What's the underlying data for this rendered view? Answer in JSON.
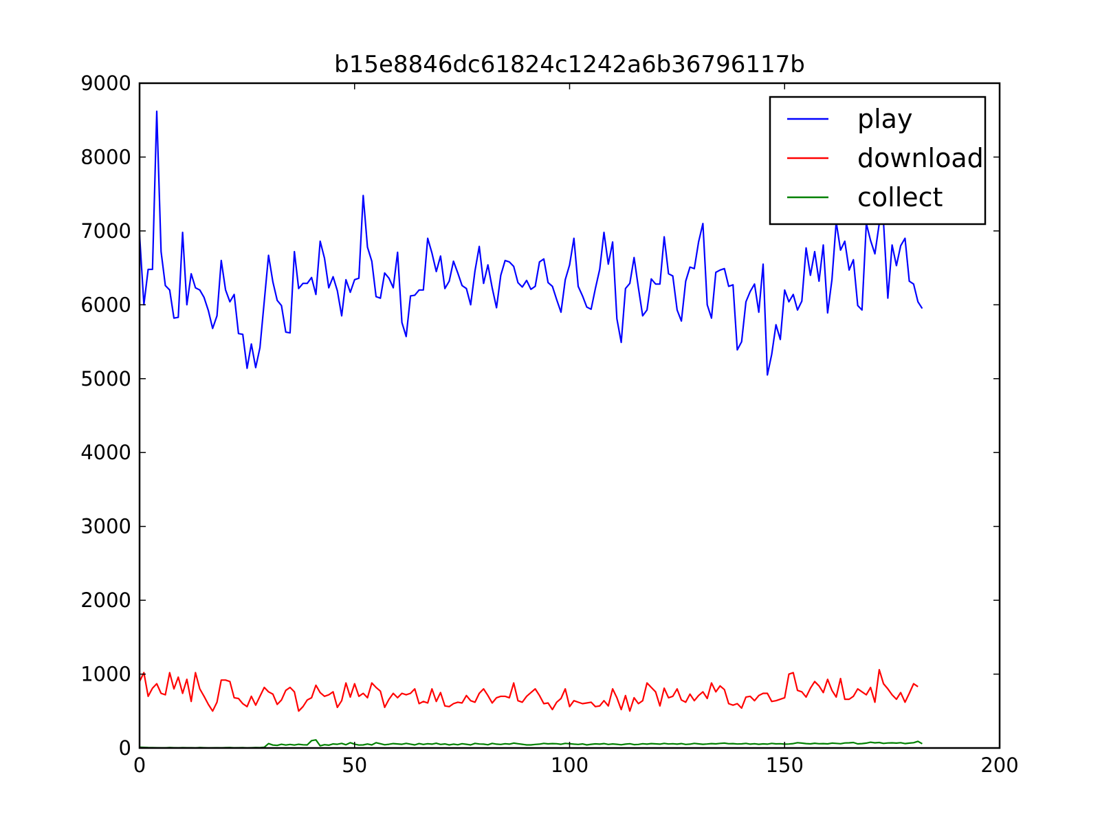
{
  "chart_data": {
    "type": "line",
    "title": "b15e8846dc61824c1242a6b36796117b",
    "xlabel": "",
    "ylabel": "",
    "xlim": [
      0,
      200
    ],
    "ylim": [
      0,
      9000
    ],
    "xticks": [
      0,
      50,
      100,
      150,
      200
    ],
    "yticks": [
      0,
      1000,
      2000,
      3000,
      4000,
      5000,
      6000,
      7000,
      8000,
      9000
    ],
    "grid": false,
    "legend_position": "top-right",
    "series": [
      {
        "name": "play",
        "color": "#0000ff",
        "values": [
          6950,
          6000,
          6480,
          6480,
          8620,
          6720,
          6260,
          6200,
          5820,
          5830,
          6980,
          6000,
          6420,
          6230,
          6200,
          6100,
          5920,
          5680,
          5850,
          6600,
          6200,
          6040,
          6140,
          5610,
          5600,
          5140,
          5470,
          5150,
          5420,
          6050,
          6670,
          6310,
          6060,
          5990,
          5630,
          5620,
          6720,
          6220,
          6290,
          6290,
          6370,
          6140,
          6860,
          6630,
          6230,
          6380,
          6190,
          5850,
          6340,
          6170,
          6340,
          6360,
          7480,
          6780,
          6590,
          6110,
          6090,
          6430,
          6360,
          6230,
          6710,
          5760,
          5570,
          6120,
          6130,
          6200,
          6200,
          6900,
          6700,
          6450,
          6660,
          6220,
          6320,
          6590,
          6430,
          6260,
          6220,
          6000,
          6460,
          6790,
          6290,
          6540,
          6230,
          5960,
          6400,
          6600,
          6580,
          6520,
          6300,
          6240,
          6330,
          6210,
          6250,
          6580,
          6620,
          6300,
          6250,
          6070,
          5900,
          6340,
          6540,
          6900,
          6250,
          6120,
          5970,
          5940,
          6220,
          6480,
          6980,
          6550,
          6850,
          5810,
          5490,
          6220,
          6290,
          6640,
          6230,
          5850,
          5930,
          6350,
          6280,
          6280,
          6920,
          6420,
          6390,
          5930,
          5780,
          6320,
          6510,
          6490,
          6850,
          7100,
          6000,
          5820,
          6440,
          6470,
          6490,
          6250,
          6270,
          5390,
          5500,
          6040,
          6180,
          6280,
          5900,
          6550,
          5050,
          5330,
          5730,
          5530,
          6200,
          6040,
          6140,
          5930,
          6050,
          6770,
          6400,
          6720,
          6320,
          6810,
          5890,
          6340,
          7120,
          6740,
          6860,
          6470,
          6610,
          5990,
          5930,
          7100,
          6870,
          6690,
          7100,
          7120,
          6090,
          6810,
          6530,
          6800,
          6900,
          6320,
          6280,
          6040,
          5950
        ]
      },
      {
        "name": "download",
        "color": "#ff0000",
        "values": [
          900,
          1020,
          700,
          810,
          870,
          740,
          720,
          1020,
          800,
          960,
          740,
          930,
          630,
          1020,
          800,
          700,
          590,
          500,
          620,
          920,
          920,
          900,
          680,
          670,
          600,
          560,
          700,
          580,
          700,
          820,
          760,
          730,
          590,
          650,
          780,
          820,
          760,
          500,
          560,
          650,
          680,
          850,
          750,
          700,
          720,
          760,
          550,
          640,
          880,
          690,
          870,
          700,
          740,
          680,
          880,
          820,
          770,
          550,
          660,
          740,
          680,
          740,
          720,
          740,
          800,
          600,
          630,
          610,
          800,
          630,
          750,
          570,
          560,
          600,
          620,
          610,
          710,
          640,
          620,
          740,
          800,
          710,
          610,
          680,
          700,
          700,
          680,
          880,
          640,
          620,
          700,
          750,
          800,
          710,
          600,
          610,
          520,
          620,
          670,
          800,
          560,
          640,
          620,
          600,
          610,
          620,
          560,
          570,
          640,
          570,
          800,
          680,
          520,
          710,
          500,
          680,
          600,
          640,
          880,
          820,
          760,
          570,
          810,
          680,
          700,
          800,
          650,
          620,
          730,
          640,
          710,
          760,
          670,
          880,
          760,
          840,
          790,
          600,
          580,
          600,
          540,
          690,
          700,
          640,
          710,
          740,
          740,
          630,
          640,
          660,
          680,
          1000,
          1020,
          780,
          760,
          690,
          810,
          900,
          840,
          750,
          930,
          780,
          690,
          940,
          660,
          660,
          700,
          800,
          760,
          720,
          820,
          620,
          1060,
          870,
          800,
          720,
          660,
          750,
          620,
          740,
          870,
          830
        ]
      },
      {
        "name": "collect",
        "color": "#008000",
        "values": [
          10,
          8,
          6,
          5,
          4,
          3,
          3,
          6,
          4,
          3,
          5,
          4,
          4,
          2,
          6,
          4,
          2,
          3,
          4,
          3,
          5,
          6,
          3,
          4,
          5,
          2,
          4,
          6,
          5,
          10,
          60,
          40,
          35,
          50,
          40,
          48,
          40,
          50,
          44,
          42,
          100,
          110,
          30,
          45,
          38,
          55,
          50,
          62,
          44,
          72,
          52,
          40,
          42,
          54,
          42,
          72,
          58,
          44,
          50,
          60,
          55,
          50,
          62,
          52,
          42,
          60,
          48,
          58,
          52,
          64,
          48,
          55,
          42,
          52,
          44,
          58,
          50,
          42,
          62,
          54,
          52,
          44,
          62,
          52,
          48,
          58,
          52,
          66,
          58,
          50,
          42,
          42,
          48,
          52,
          62,
          56,
          60,
          58,
          50,
          62,
          58,
          52,
          48,
          55,
          42,
          50,
          56,
          52,
          60,
          48,
          55,
          50,
          44,
          52,
          58,
          46,
          48,
          58,
          52,
          60,
          56,
          52,
          62,
          54,
          58,
          52,
          60,
          48,
          52,
          62,
          56,
          50,
          54,
          60,
          56,
          62,
          66,
          58,
          60,
          54,
          56,
          62,
          52,
          58,
          50,
          56,
          52,
          62,
          56,
          58,
          52,
          54,
          60,
          72,
          66,
          60,
          56,
          64,
          58,
          60,
          56,
          66,
          62,
          58,
          68,
          70,
          74,
          56,
          60,
          66,
          78,
          70,
          74,
          62,
          68,
          70,
          66,
          72,
          60,
          66,
          72,
          90,
          58
        ]
      }
    ]
  }
}
